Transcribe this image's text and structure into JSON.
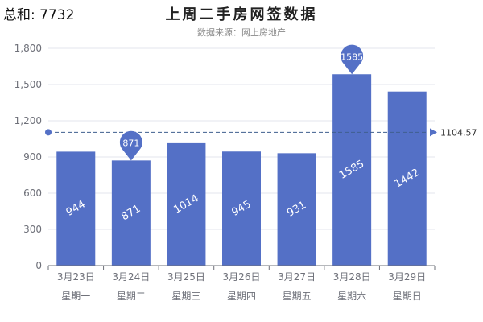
{
  "header": {
    "total_label": "总和: 7732",
    "title": "上周二手房网签数据",
    "subtitle": "数据来源：网上房地产"
  },
  "colors": {
    "bar": "#5470c6",
    "axis": "#6e7079",
    "grid": "#e3e6ee",
    "mean_line": "#3f5f8f",
    "text": "#333333"
  },
  "chart_data": {
    "type": "bar",
    "categories": [
      "3月23日",
      "3月24日",
      "3月25日",
      "3月26日",
      "3月27日",
      "3月28日",
      "3月29日"
    ],
    "weekdays": [
      "星期一",
      "星期二",
      "星期三",
      "星期四",
      "星期五",
      "星期六",
      "星期日"
    ],
    "values": [
      944,
      871,
      1014,
      945,
      931,
      1585,
      1442
    ],
    "yticks": [
      0,
      300,
      600,
      900,
      1200,
      1500,
      1800
    ],
    "ytick_labels": [
      "0",
      "300",
      "600",
      "900",
      "1,200",
      "1,500",
      "1,800"
    ],
    "ylim": [
      0,
      1800
    ],
    "mean_value": 1104.57,
    "mean_label": "1104.57",
    "markers": [
      {
        "category": "3月24日",
        "value": 871,
        "label": "871"
      },
      {
        "category": "3月28日",
        "value": 1585,
        "label": "1585"
      }
    ],
    "grid": true
  }
}
